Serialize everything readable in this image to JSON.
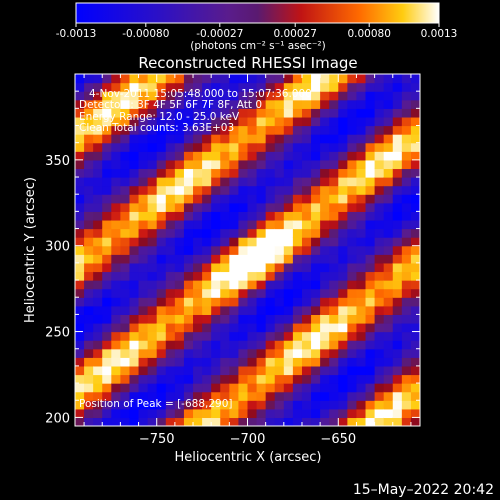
{
  "colorbar": {
    "tick_labels": [
      "-0.0013",
      "-0.00080",
      "-0.00027",
      "0.00027",
      "0.00080",
      "0.0013"
    ],
    "units": "(photons cm⁻² s⁻¹ asec⁻²)",
    "range": [
      -0.0013,
      0.0013
    ]
  },
  "chart_data": {
    "type": "heatmap",
    "title": "Reconstructed RHESSI Image",
    "xlabel": "Heliocentric X (arcsec)",
    "ylabel": "Heliocentric Y (arcsec)",
    "xlim": [
      -795,
      -605
    ],
    "ylim": [
      195,
      400
    ],
    "xticks": [
      -750,
      -700,
      -650
    ],
    "yticks": [
      200,
      250,
      300,
      350
    ],
    "x_tick_labels": [
      "−750",
      "−700",
      "−650"
    ],
    "y_tick_labels": [
      "200",
      "250",
      "300",
      "350"
    ],
    "annotations": [
      "4-Nov-2011 15:05:48.000 to 15:07:36.000",
      "Detectors: 3F 4F 5F 6F 7F 8F, Att 0",
      "Energy Range: 12.0 - 25.0 keV",
      "Clean    Total counts: 3.63E+03"
    ],
    "peak_label": "Position of Peak = [-688,290]",
    "peak": [
      -688,
      290
    ]
  },
  "footer": {
    "timestamp": "15–May–2022 20:42"
  }
}
